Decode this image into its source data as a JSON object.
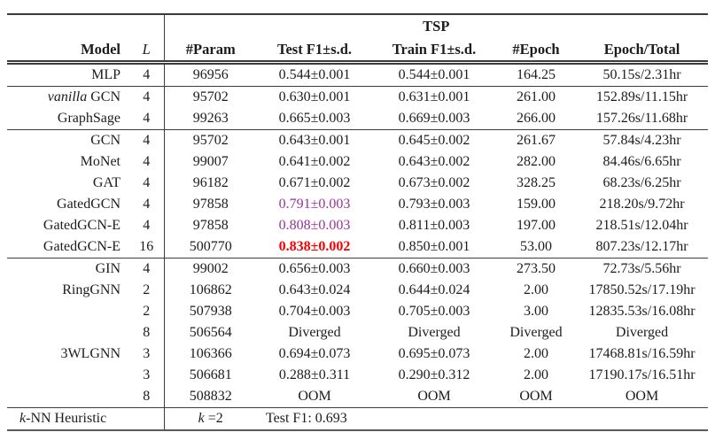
{
  "table": {
    "span_header": "TSP",
    "columns": [
      "Model",
      "L",
      "#Param",
      "Test F1±s.d.",
      "Train F1±s.d.",
      "#Epoch",
      "Epoch/Total"
    ],
    "colors": {
      "good_result": "#993399",
      "best_result": "#f40000",
      "rule": "#3c3c3c"
    },
    "groups": [
      {
        "rows": [
          {
            "model": "MLP",
            "L": "4",
            "param": "96956",
            "test": "0.544±0.001",
            "train": "0.544±0.001",
            "epoch": "164.25",
            "time": "50.15s/2.31hr"
          }
        ]
      },
      {
        "rows": [
          {
            "model_i": "vanilla",
            "model": " GCN",
            "L": "4",
            "param": "95702",
            "test": "0.630±0.001",
            "train": "0.631±0.001",
            "epoch": "261.00",
            "time": "152.89s/11.15hr"
          },
          {
            "model": "GraphSage",
            "L": "4",
            "param": "99263",
            "test": "0.665±0.003",
            "train": "0.669±0.003",
            "epoch": "266.00",
            "time": "157.26s/11.68hr"
          }
        ]
      },
      {
        "rows": [
          {
            "model": "GCN",
            "L": "4",
            "param": "95702",
            "test": "0.643±0.001",
            "train": "0.645±0.002",
            "epoch": "261.67",
            "time": "57.84s/4.23hr"
          },
          {
            "model": "MoNet",
            "L": "4",
            "param": "99007",
            "test": "0.641±0.002",
            "train": "0.643±0.002",
            "epoch": "282.00",
            "time": "84.46s/6.65hr"
          },
          {
            "model": "GAT",
            "L": "4",
            "param": "96182",
            "test": "0.671±0.002",
            "train": "0.673±0.002",
            "epoch": "328.25",
            "time": "68.23s/6.25hr"
          },
          {
            "model": "GatedGCN",
            "L": "4",
            "param": "97858",
            "test": "0.791±0.003",
            "test_style": "purple",
            "train": "0.793±0.003",
            "epoch": "159.00",
            "time": "218.20s/9.72hr"
          },
          {
            "model": "GatedGCN-E",
            "L": "4",
            "param": "97858",
            "test": "0.808±0.003",
            "test_style": "purple",
            "train": "0.811±0.003",
            "epoch": "197.00",
            "time": "218.51s/12.04hr"
          },
          {
            "model": "GatedGCN-E",
            "L": "16",
            "param": "500770",
            "test": "0.838±0.002",
            "test_style": "red",
            "train": "0.850±0.001",
            "epoch": "53.00",
            "time": "807.23s/12.17hr"
          }
        ]
      },
      {
        "rows": [
          {
            "model": "GIN",
            "L": "4",
            "param": "99002",
            "test": "0.656±0.003",
            "train": "0.660±0.003",
            "epoch": "273.50",
            "time": "72.73s/5.56hr"
          },
          {
            "model": "RingGNN",
            "L": "2",
            "param": "106862",
            "test": "0.643±0.024",
            "train": "0.644±0.024",
            "epoch": "2.00",
            "time": "17850.52s/17.19hr"
          },
          {
            "model": "",
            "L": "2",
            "param": "507938",
            "test": "0.704±0.003",
            "train": "0.705±0.003",
            "epoch": "3.00",
            "time": "12835.53s/16.08hr"
          },
          {
            "model": "",
            "L": "8",
            "param": "506564",
            "test": "Diverged",
            "train": "Diverged",
            "epoch": "Diverged",
            "time": "Diverged"
          },
          {
            "model": "3WLGNN",
            "L": "3",
            "param": "106366",
            "test": "0.694±0.073",
            "train": "0.695±0.073",
            "epoch": "2.00",
            "time": "17468.81s/16.59hr"
          },
          {
            "model": "",
            "L": "3",
            "param": "506681",
            "test": "0.288±0.311",
            "train": "0.290±0.312",
            "epoch": "2.00",
            "time": "17190.17s/16.51hr"
          },
          {
            "model": "",
            "L": "8",
            "param": "508832",
            "test": "OOM",
            "train": "OOM",
            "epoch": "OOM",
            "time": "OOM"
          }
        ]
      },
      {
        "rows": [
          {
            "model_i": "k",
            "model": "-NN Heuristic",
            "model_left": true,
            "L": "",
            "param_i": "k",
            "param": " =2",
            "note": "Test F1: 0.693"
          }
        ]
      }
    ]
  }
}
